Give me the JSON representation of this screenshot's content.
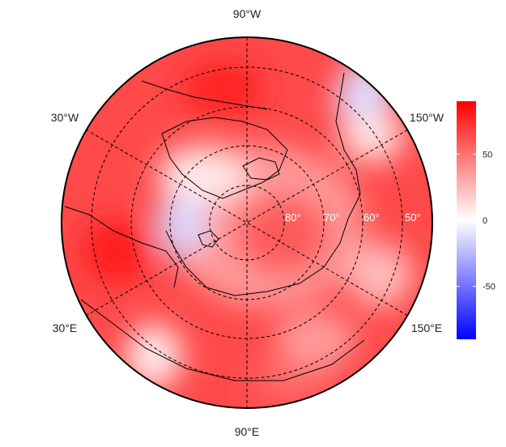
{
  "map": {
    "projection": "north-polar-stereographic",
    "center_lat": 90,
    "boundary_lat": 40,
    "colormap": [
      "#0000ff",
      "#ffffff",
      "#ff0000"
    ],
    "longitude_labels": {
      "top": "90°W",
      "bottom": "90°E",
      "upper_left": "30°W",
      "lower_left": "30°E",
      "upper_right": "150°W",
      "lower_right": "150°E"
    },
    "latitude_labels": [
      "80°",
      "70°",
      "60°",
      "50°"
    ],
    "graticule": {
      "latitudes": [
        80,
        70,
        60,
        50
      ],
      "longitudes_every_deg": 60,
      "style": "dashed"
    }
  },
  "colorbar": {
    "min": -90,
    "max": 90,
    "ticks": [
      "50",
      "0",
      "-50"
    ],
    "tick_values": [
      50,
      0,
      -50
    ]
  }
}
